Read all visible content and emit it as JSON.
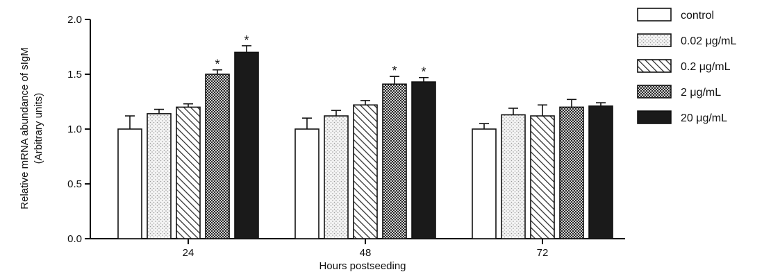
{
  "chart_data": {
    "type": "bar",
    "title": "",
    "xlabel": "Hours postseeding",
    "ylabel": "Relative mRNA abundance of sIgM",
    "ylabel_sub": "(Arbitrary units)",
    "ylim": [
      0,
      2.0
    ],
    "yticks": [
      "0.0",
      "0.5",
      "1.0",
      "1.5",
      "2.0"
    ],
    "categories": [
      "24",
      "48",
      "72"
    ],
    "legend_position": "right",
    "series": [
      {
        "name": "control",
        "values": [
          1.0,
          1.0,
          1.0
        ],
        "errors": [
          0.12,
          0.1,
          0.05
        ],
        "significant": [
          false,
          false,
          false
        ],
        "pattern": "white"
      },
      {
        "name": "0.02 μg/mL",
        "values": [
          1.14,
          1.12,
          1.13
        ],
        "errors": [
          0.04,
          0.05,
          0.06
        ],
        "significant": [
          false,
          false,
          false
        ],
        "pattern": "dots"
      },
      {
        "name": "0.2 μg/mL",
        "values": [
          1.2,
          1.22,
          1.12
        ],
        "errors": [
          0.03,
          0.04,
          0.1
        ],
        "significant": [
          false,
          false,
          false
        ],
        "pattern": "hatch"
      },
      {
        "name": "2 μg/mL",
        "values": [
          1.5,
          1.41,
          1.2
        ],
        "errors": [
          0.04,
          0.07,
          0.07
        ],
        "significant": [
          true,
          true,
          false
        ],
        "pattern": "checker"
      },
      {
        "name": "20 μg/mL",
        "values": [
          1.7,
          1.43,
          1.21
        ],
        "errors": [
          0.06,
          0.04,
          0.03
        ],
        "significant": [
          true,
          true,
          false
        ],
        "pattern": "black"
      }
    ],
    "significance_marker": "*"
  }
}
